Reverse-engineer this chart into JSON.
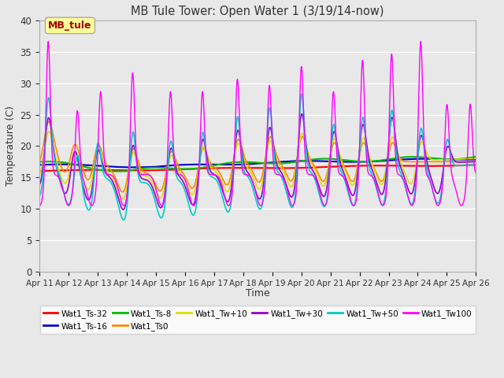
{
  "title": "MB Tule Tower: Open Water 1 (3/19/14-now)",
  "xlabel": "Time",
  "ylabel": "Temperature (C)",
  "ylim": [
    0,
    40
  ],
  "yticks": [
    0,
    5,
    10,
    15,
    20,
    25,
    30,
    35,
    40
  ],
  "annotation_box": "MB_tule",
  "annotation_color": "#aa0000",
  "annotation_bg": "#ffff99",
  "plot_bg": "#e8e8e8",
  "fig_bg": "#e8e8e8",
  "x_tick_labels": [
    "Apr 11",
    "Apr 12",
    "Apr 13",
    "Apr 14",
    "Apr 15",
    "Apr 16",
    "Apr 17",
    "Apr 18",
    "Apr 19",
    "Apr 20",
    "Apr 21",
    "Apr 22",
    "Apr 23",
    "Apr 24",
    "Apr 25",
    "Apr 26"
  ],
  "legend_entries": [
    {
      "label": "Wat1_Ts-32",
      "color": "#ff0000"
    },
    {
      "label": "Wat1_Ts-16",
      "color": "#0000cc"
    },
    {
      "label": "Wat1_Ts-8",
      "color": "#00bb00"
    },
    {
      "label": "Wat1_Ts0",
      "color": "#ff8800"
    },
    {
      "label": "Wat1_Tw+10",
      "color": "#dddd00"
    },
    {
      "label": "Wat1_Tw+30",
      "color": "#9900cc"
    },
    {
      "label": "Wat1_Tw+50",
      "color": "#00cccc"
    },
    {
      "label": "Wat1_Tw100",
      "color": "#ff00ff"
    }
  ]
}
